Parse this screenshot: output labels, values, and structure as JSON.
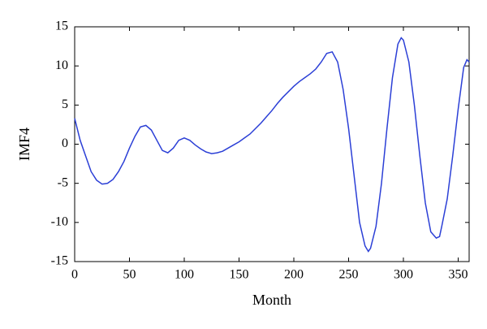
{
  "chart_data": {
    "type": "line",
    "x_label": "Month",
    "y_label": "IMF4",
    "x": [
      0,
      5,
      10,
      15,
      20,
      25,
      30,
      35,
      40,
      45,
      50,
      55,
      60,
      65,
      70,
      75,
      80,
      85,
      90,
      95,
      100,
      105,
      110,
      115,
      120,
      125,
      130,
      135,
      140,
      145,
      150,
      155,
      160,
      165,
      170,
      175,
      180,
      185,
      190,
      195,
      200,
      205,
      210,
      215,
      220,
      225,
      230,
      235,
      240,
      245,
      250,
      255,
      260,
      265,
      268,
      270,
      275,
      280,
      285,
      290,
      295,
      298,
      300,
      305,
      310,
      315,
      320,
      325,
      330,
      333,
      335,
      340,
      345,
      350,
      355,
      358,
      360
    ],
    "series": [
      {
        "name": "IMF4",
        "color": "#2b3fd6",
        "values": [
          3.3,
          0.5,
          -1.5,
          -3.5,
          -4.6,
          -5.1,
          -5.0,
          -4.5,
          -3.5,
          -2.2,
          -0.5,
          1.0,
          2.2,
          2.4,
          1.8,
          0.5,
          -0.8,
          -1.1,
          -0.5,
          0.5,
          0.8,
          0.5,
          -0.1,
          -0.6,
          -1.0,
          -1.2,
          -1.1,
          -0.9,
          -0.5,
          -0.1,
          0.3,
          0.8,
          1.3,
          2.0,
          2.7,
          3.5,
          4.3,
          5.2,
          6.0,
          6.7,
          7.4,
          8.0,
          8.5,
          9.0,
          9.6,
          10.5,
          11.6,
          11.8,
          10.5,
          7.0,
          2.0,
          -4.0,
          -10.0,
          -13.0,
          -13.7,
          -13.3,
          -10.5,
          -5.0,
          2.0,
          8.5,
          12.8,
          13.6,
          13.3,
          10.5,
          5.0,
          -1.5,
          -7.5,
          -11.2,
          -12.0,
          -11.8,
          -10.5,
          -7.0,
          -1.5,
          4.5,
          9.8,
          10.8,
          10.5
        ]
      }
    ],
    "xlim": [
      0,
      360
    ],
    "xticks": [
      0,
      50,
      100,
      150,
      200,
      250,
      300,
      350
    ],
    "ylim": [
      -15,
      15
    ],
    "yticks": [
      -15,
      -10,
      -5,
      0,
      5,
      10,
      15
    ]
  }
}
